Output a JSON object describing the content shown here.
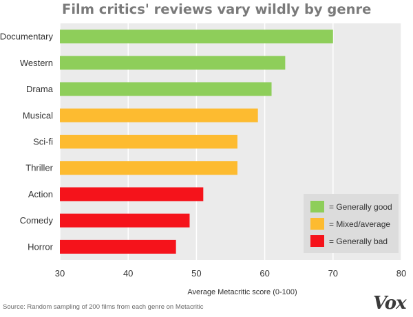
{
  "chart_data": {
    "type": "bar",
    "orientation": "horizontal",
    "title": "Film critics' reviews vary wildly by genre",
    "xlabel": "Average Metacritic score (0-100)",
    "ylabel": "",
    "xlim": [
      30,
      80
    ],
    "xticks": [
      30,
      40,
      50,
      60,
      70,
      80
    ],
    "grid": true,
    "legend_position": "bottom-right",
    "categories": [
      "Documentary",
      "Western",
      "Drama",
      "Musical",
      "Sci-fi",
      "Thriller",
      "Action",
      "Comedy",
      "Horror"
    ],
    "values": [
      70,
      63,
      61,
      59,
      56,
      56,
      51,
      49,
      47
    ],
    "groups": [
      "good",
      "good",
      "good",
      "mixed",
      "mixed",
      "mixed",
      "bad",
      "bad",
      "bad"
    ],
    "legend": [
      {
        "key": "good",
        "label": "= Generally good",
        "color": "#8ece5a"
      },
      {
        "key": "mixed",
        "label": "= Mixed/average",
        "color": "#fdbb30"
      },
      {
        "key": "bad",
        "label": "= Generally bad",
        "color": "#f5131b"
      }
    ],
    "colors": {
      "background": "#ebebeb",
      "grid": "#ffffff",
      "legend_bg": "#dcdcdc"
    }
  },
  "footer": {
    "source": "Source: Random sampling of 200 films from each genre on Metacritic",
    "logo": "Vox"
  }
}
